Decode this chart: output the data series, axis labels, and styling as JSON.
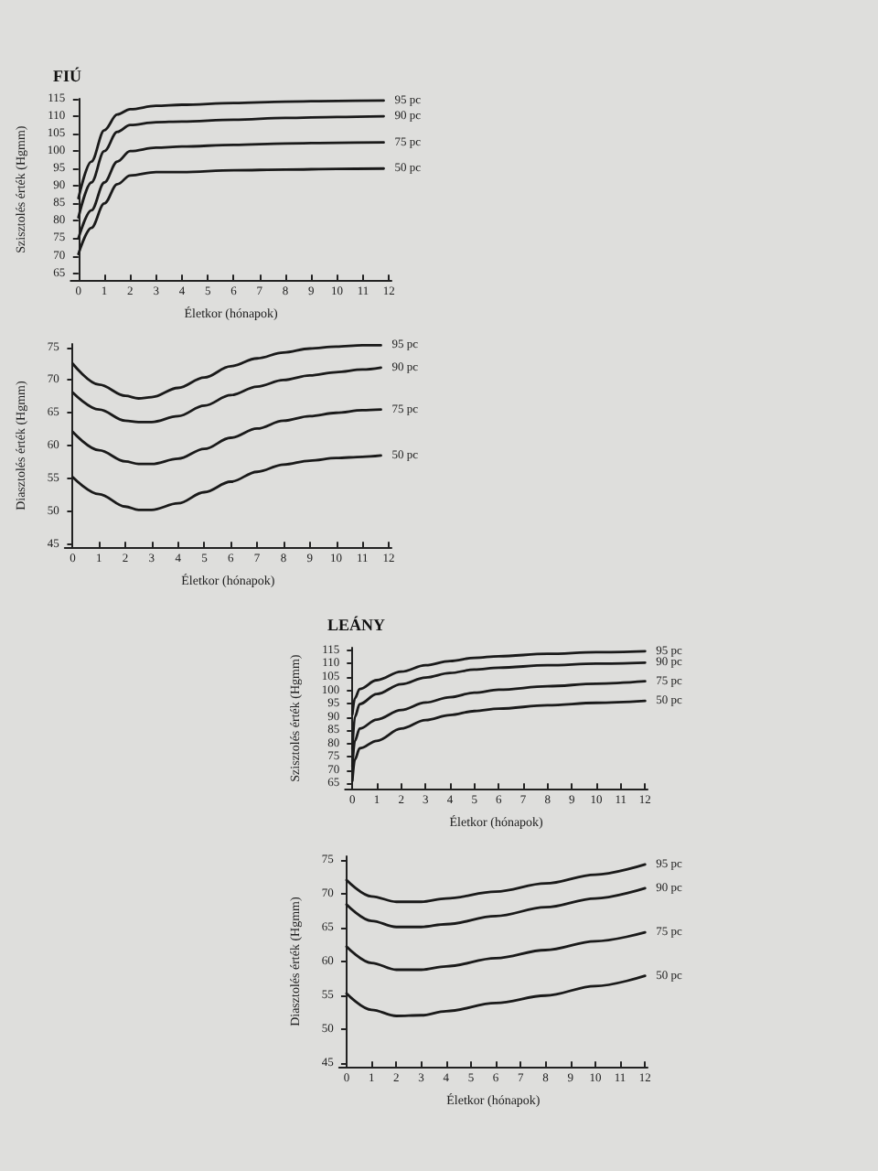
{
  "chart_data": [
    {
      "type": "line",
      "title": "FIÚ",
      "xlabel": "Életkor (hónapok)",
      "ylabel": "Szisztolés érték (Hgmm)",
      "xlim": [
        -0.3,
        12.1
      ],
      "xticks": [
        0,
        1,
        2,
        3,
        4,
        5,
        6,
        7,
        8,
        9,
        10,
        11,
        12
      ],
      "ylim": [
        63,
        115
      ],
      "yticks": [
        65,
        70,
        75,
        80,
        85,
        90,
        95,
        100,
        105,
        110,
        115
      ],
      "marker": "none",
      "line_style": "solid",
      "x": [
        0,
        0.5,
        1,
        1.5,
        2,
        3,
        4,
        6,
        8,
        10,
        11.8
      ],
      "series": [
        {
          "name": "95 pc",
          "color": "#1a1a1a",
          "values": [
            86.5,
            97,
            106,
            110.5,
            112,
            113,
            113.3,
            113.8,
            114.2,
            114.4,
            114.5
          ]
        },
        {
          "name": "90 pc",
          "color": "#1a1a1a",
          "values": [
            81,
            91,
            100,
            105.5,
            107.5,
            108.3,
            108.5,
            109,
            109.5,
            109.8,
            110
          ]
        },
        {
          "name": "75 pc",
          "color": "#1a1a1a",
          "values": [
            75,
            83,
            91,
            97,
            100,
            101,
            101.3,
            101.8,
            102.2,
            102.4,
            102.5
          ]
        },
        {
          "name": "50 pc",
          "color": "#1a1a1a",
          "values": [
            70.5,
            78,
            85,
            90.5,
            93,
            94,
            94,
            94.5,
            94.7,
            94.9,
            95
          ]
        }
      ]
    },
    {
      "type": "line",
      "xlabel": "Életkor (hónapok)",
      "ylabel": "Diasztolés érték (Hgmm)",
      "xlim": [
        -0.3,
        12.1
      ],
      "xticks": [
        0,
        1,
        2,
        3,
        4,
        5,
        6,
        7,
        8,
        9,
        10,
        11,
        12
      ],
      "ylim": [
        44.5,
        75.5
      ],
      "yticks": [
        45,
        50,
        55,
        60,
        65,
        70,
        75
      ],
      "marker": "none",
      "line_style": "solid",
      "x": [
        0,
        1,
        2,
        2.5,
        3,
        4,
        5,
        6,
        7,
        8,
        9,
        10,
        11,
        11.7
      ],
      "series": [
        {
          "name": "95 pc",
          "color": "#1a1a1a",
          "values": [
            72.5,
            69.3,
            67.6,
            67.2,
            67.4,
            68.8,
            70.4,
            72.1,
            73.3,
            74.2,
            74.8,
            75.1,
            75.3,
            75.3
          ]
        },
        {
          "name": "90 pc",
          "color": "#1a1a1a",
          "values": [
            68.1,
            65.5,
            63.8,
            63.6,
            63.6,
            64.5,
            66.1,
            67.7,
            69,
            70,
            70.7,
            71.2,
            71.6,
            71.9
          ]
        },
        {
          "name": "75 pc",
          "color": "#1a1a1a",
          "values": [
            62.1,
            59.3,
            57.6,
            57.2,
            57.2,
            58,
            59.5,
            61.2,
            62.6,
            63.8,
            64.5,
            65,
            65.4,
            65.5
          ]
        },
        {
          "name": "50 pc",
          "color": "#1a1a1a",
          "values": [
            55.2,
            52.6,
            50.7,
            50.2,
            50.2,
            51.2,
            52.9,
            54.5,
            56,
            57.1,
            57.7,
            58.1,
            58.3,
            58.5
          ]
        }
      ]
    },
    {
      "type": "line",
      "title": "LEÁNY",
      "xlabel": "Életkor (hónapok)",
      "ylabel": "Szisztolés érték (Hgmm)",
      "xlim": [
        -0.3,
        12.1
      ],
      "xticks": [
        0,
        1,
        2,
        3,
        4,
        5,
        6,
        7,
        8,
        9,
        10,
        11,
        12
      ],
      "ylim": [
        63,
        116
      ],
      "yticks": [
        65,
        70,
        75,
        80,
        85,
        90,
        95,
        100,
        105,
        110,
        115
      ],
      "marker": "none",
      "line_style": "solid",
      "x": [
        0,
        0.1,
        0.3,
        1,
        2,
        3,
        4,
        5,
        6,
        8,
        10,
        12
      ],
      "series": [
        {
          "name": "95 pc",
          "color": "#1a1a1a",
          "values": [
            91,
            97,
            100.5,
            103.8,
            107,
            109.4,
            111,
            112.2,
            112.8,
            113.7,
            114.3,
            114.7
          ]
        },
        {
          "name": "90 pc",
          "color": "#1a1a1a",
          "values": [
            78,
            90,
            94.8,
            98.6,
            102.3,
            104.8,
            106.5,
            107.8,
            108.5,
            109.4,
            110,
            110.4
          ]
        },
        {
          "name": "75 pc",
          "color": "#1a1a1a",
          "values": [
            71.5,
            81,
            85.6,
            89,
            92.6,
            95.4,
            97.4,
            99.1,
            100.2,
            101.5,
            102.5,
            103.4
          ]
        },
        {
          "name": "50 pc",
          "color": "#1a1a1a",
          "values": [
            66,
            74,
            78.2,
            81,
            85.6,
            88.8,
            90.7,
            92.2,
            93.1,
            94.4,
            95.3,
            96
          ]
        }
      ]
    },
    {
      "type": "line",
      "xlabel": "Életkor (hónapok)",
      "ylabel": "Diasztolés érték (Hgmm)",
      "xlim": [
        -0.3,
        12.1
      ],
      "xticks": [
        0,
        1,
        2,
        3,
        4,
        5,
        6,
        7,
        8,
        9,
        10,
        11,
        12
      ],
      "ylim": [
        44.5,
        75.5
      ],
      "yticks": [
        45,
        50,
        55,
        60,
        65,
        70,
        75
      ],
      "marker": "none",
      "line_style": "solid",
      "x": [
        0,
        1,
        2,
        3,
        4,
        6,
        8,
        10,
        12
      ],
      "series": [
        {
          "name": "95 pc",
          "color": "#1a1a1a",
          "values": [
            72,
            69.6,
            68.8,
            68.8,
            69.3,
            70.3,
            71.5,
            72.8,
            74.3
          ]
        },
        {
          "name": "90 pc",
          "color": "#1a1a1a",
          "values": [
            68.4,
            66,
            65.1,
            65.1,
            65.5,
            66.7,
            68,
            69.3,
            70.8
          ]
        },
        {
          "name": "75 pc",
          "color": "#1a1a1a",
          "values": [
            62.2,
            59.8,
            58.8,
            58.8,
            59.3,
            60.5,
            61.7,
            63,
            64.3
          ]
        },
        {
          "name": "50 pc",
          "color": "#1a1a1a",
          "values": [
            55.3,
            52.9,
            52,
            52.1,
            52.7,
            53.9,
            55,
            56.4,
            57.9
          ]
        }
      ]
    }
  ]
}
